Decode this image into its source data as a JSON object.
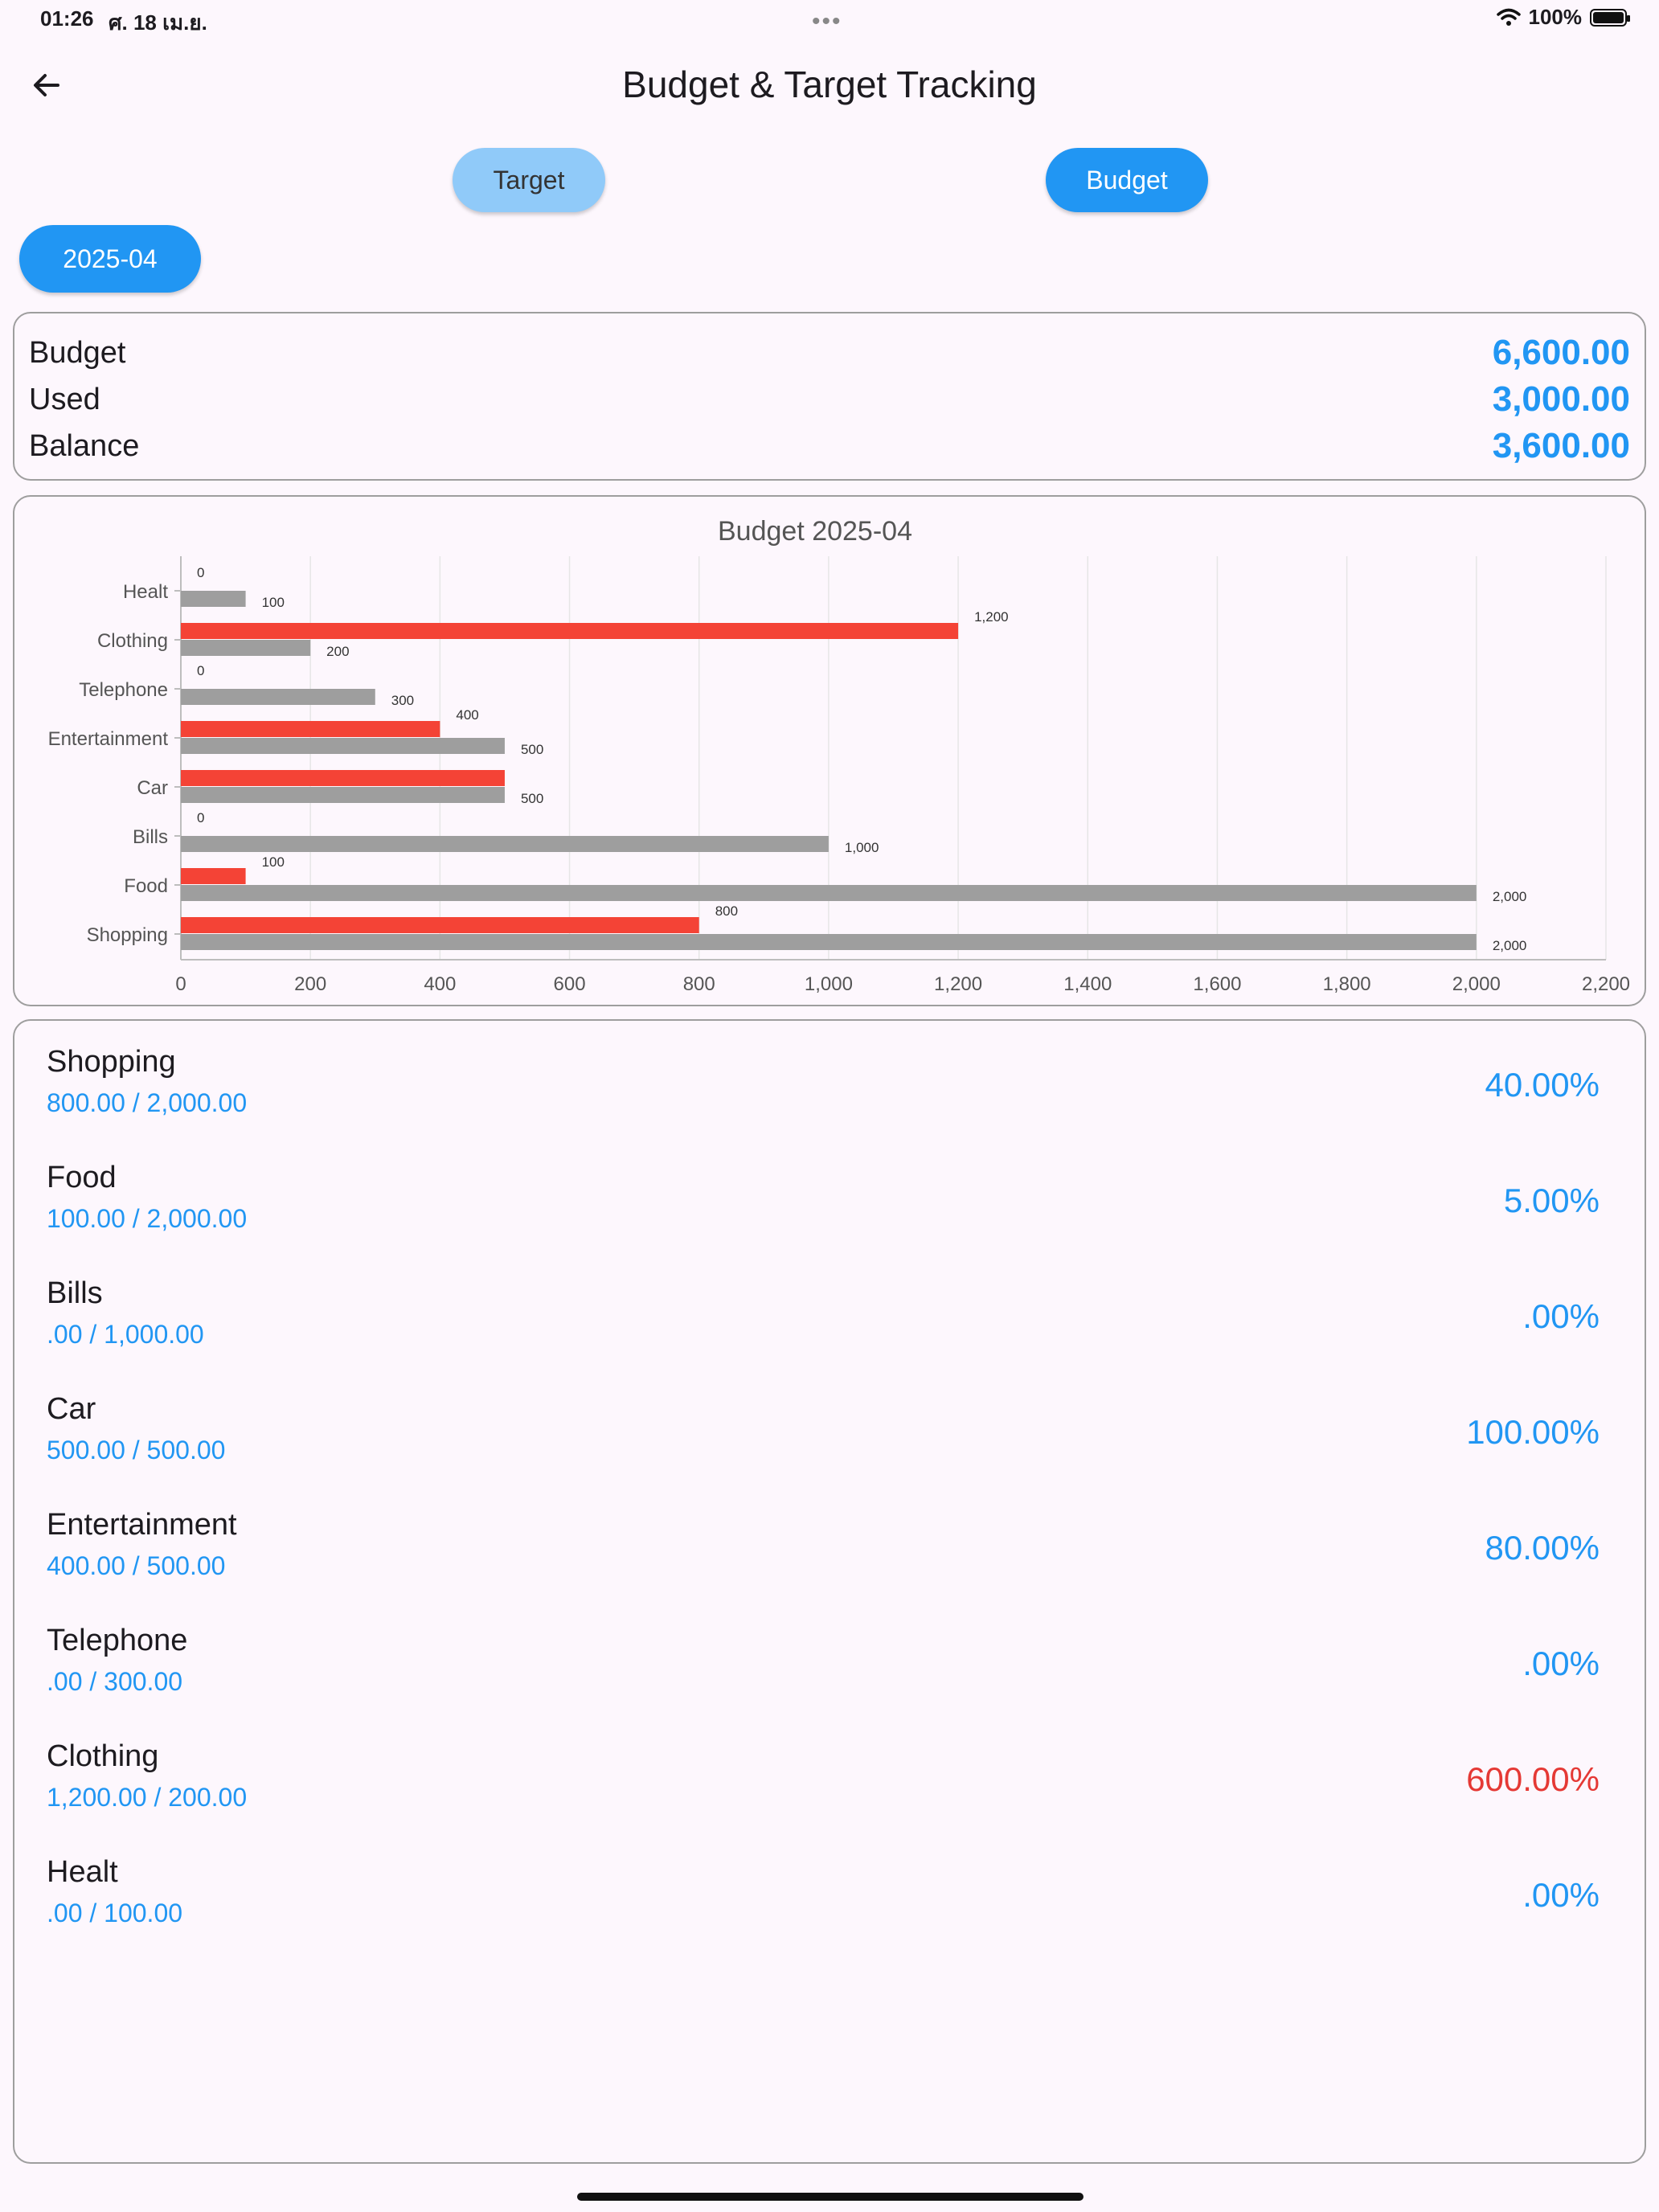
{
  "status_bar": {
    "time": "01:26",
    "date": "ศ. 18 เม.ย.",
    "dots": "•••",
    "battery": "100%"
  },
  "header": {
    "title": "Budget & Target Tracking"
  },
  "tabs": {
    "target": "Target",
    "budget": "Budget"
  },
  "month": "2025-04",
  "summary": [
    {
      "label": "Budget",
      "value": "6,600.00"
    },
    {
      "label": "Used",
      "value": "3,000.00"
    },
    {
      "label": "Balance",
      "value": "3,600.00"
    }
  ],
  "colors": {
    "accent": "#2196f3",
    "used_bar": "#f44336",
    "budget_bar": "#9e9e9e",
    "over": "#e53935"
  },
  "icons": {
    "back": "arrow-left-icon",
    "wifi": "wifi-icon",
    "battery": "battery-icon"
  },
  "chart_data": {
    "type": "bar",
    "orientation": "horizontal",
    "title": "Budget 2025-04",
    "categories": [
      "Healt",
      "Clothing",
      "Telephone",
      "Entertainment",
      "Car",
      "Bills",
      "Food",
      "Shopping"
    ],
    "series": [
      {
        "values": [
          0,
          1200,
          0,
          400,
          500,
          0,
          100,
          800
        ]
      },
      {
        "values": [
          100,
          200,
          300,
          500,
          500,
          1000,
          2000,
          2000
        ]
      }
    ],
    "data_labels": [
      [
        "0",
        "1,200",
        "0",
        "400",
        "",
        "0",
        "100",
        "800"
      ],
      [
        "100",
        "200",
        "300",
        "500",
        "500",
        "1,000",
        "2,000",
        "2,000"
      ]
    ],
    "xlim": [
      0,
      2200
    ],
    "xticks": [
      0,
      200,
      400,
      600,
      800,
      1000,
      1200,
      1400,
      1600,
      1800,
      2000,
      2200
    ],
    "xtick_labels": [
      "0",
      "200",
      "400",
      "600",
      "800",
      "1,000",
      "1,200",
      "1,400",
      "1,600",
      "1,800",
      "2,000",
      "2,200"
    ],
    "grid": true,
    "legend": "none"
  },
  "items": [
    {
      "name": "Shopping",
      "amount": "800.00 / 2,000.00",
      "percent": "40.00%"
    },
    {
      "name": "Food",
      "amount": "100.00 / 2,000.00",
      "percent": "5.00%"
    },
    {
      "name": "Bills",
      "amount": ".00 / 1,000.00",
      "percent": ".00%"
    },
    {
      "name": "Car",
      "amount": "500.00 / 500.00",
      "percent": "100.00%"
    },
    {
      "name": "Entertainment",
      "amount": "400.00 / 500.00",
      "percent": "80.00%"
    },
    {
      "name": "Telephone",
      "amount": ".00 / 300.00",
      "percent": ".00%"
    },
    {
      "name": "Clothing",
      "amount": "1,200.00 / 200.00",
      "percent": "600.00%"
    },
    {
      "name": "Healt",
      "amount": ".00 / 100.00",
      "percent": ".00%"
    }
  ]
}
